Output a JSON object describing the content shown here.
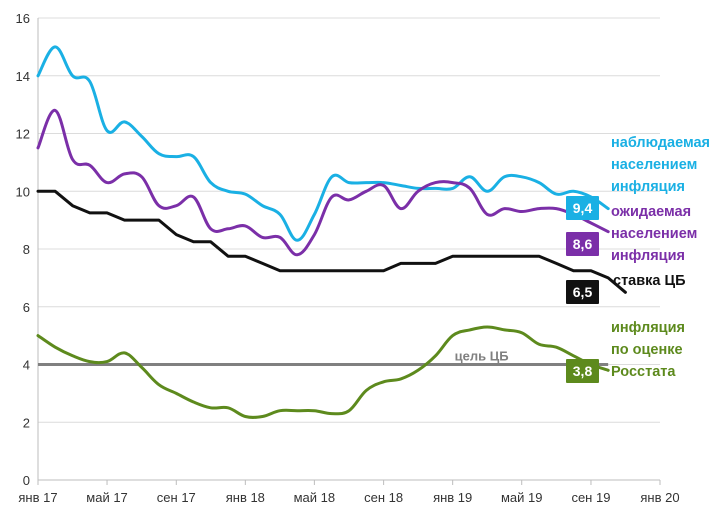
{
  "chart_data": {
    "type": "line",
    "title": "",
    "xlabel": "",
    "ylabel": "",
    "ylim": [
      0,
      16
    ],
    "yticks": [
      0,
      2,
      4,
      6,
      8,
      10,
      12,
      14,
      16
    ],
    "grid": true,
    "xlim": [
      2017.0,
      2020.0
    ],
    "xtick_labels": [
      {
        "x": 2017.0,
        "label": "янв 17"
      },
      {
        "x": 2017.333,
        "label": "май 17"
      },
      {
        "x": 2017.667,
        "label": "сен 17"
      },
      {
        "x": 2018.0,
        "label": "янв 18"
      },
      {
        "x": 2018.333,
        "label": "май 18"
      },
      {
        "x": 2018.667,
        "label": "сен 18"
      },
      {
        "x": 2019.0,
        "label": "янв 19"
      },
      {
        "x": 2019.333,
        "label": "май 19"
      },
      {
        "x": 2019.667,
        "label": "сен 19"
      },
      {
        "x": 2020.0,
        "label": "янв 20"
      }
    ],
    "series": [
      {
        "name": "наблюдаемая населением инфляция",
        "label_lines": [
          "наблюдаемая",
          "населением",
          "инфляция"
        ],
        "end_label": "9,4",
        "color": "#1ab0e4",
        "points": [
          [
            2017.0,
            14.0
          ],
          [
            2017.083,
            15.0
          ],
          [
            2017.167,
            14.0
          ],
          [
            2017.25,
            13.8
          ],
          [
            2017.333,
            12.1
          ],
          [
            2017.417,
            12.4
          ],
          [
            2017.5,
            11.9
          ],
          [
            2017.583,
            11.3
          ],
          [
            2017.667,
            11.2
          ],
          [
            2017.75,
            11.2
          ],
          [
            2017.833,
            10.3
          ],
          [
            2017.917,
            10.0
          ],
          [
            2018.0,
            9.9
          ],
          [
            2018.083,
            9.5
          ],
          [
            2018.167,
            9.2
          ],
          [
            2018.25,
            8.3
          ],
          [
            2018.333,
            9.2
          ],
          [
            2018.417,
            10.5
          ],
          [
            2018.5,
            10.3
          ],
          [
            2018.583,
            10.3
          ],
          [
            2018.667,
            10.3
          ],
          [
            2018.75,
            10.2
          ],
          [
            2018.833,
            10.1
          ],
          [
            2018.917,
            10.1
          ],
          [
            2019.0,
            10.1
          ],
          [
            2019.083,
            10.5
          ],
          [
            2019.167,
            10.0
          ],
          [
            2019.25,
            10.5
          ],
          [
            2019.333,
            10.5
          ],
          [
            2019.417,
            10.3
          ],
          [
            2019.5,
            9.9
          ],
          [
            2019.583,
            10.0
          ],
          [
            2019.667,
            9.8
          ],
          [
            2019.75,
            9.4
          ]
        ]
      },
      {
        "name": "ожидаемая населением инфляция",
        "label_lines": [
          "ожидаемая",
          "населением",
          "инфляция"
        ],
        "end_label": "8,6",
        "color": "#7b2fa8",
        "points": [
          [
            2017.0,
            11.5
          ],
          [
            2017.083,
            12.8
          ],
          [
            2017.167,
            11.1
          ],
          [
            2017.25,
            10.9
          ],
          [
            2017.333,
            10.3
          ],
          [
            2017.417,
            10.6
          ],
          [
            2017.5,
            10.5
          ],
          [
            2017.583,
            9.5
          ],
          [
            2017.667,
            9.5
          ],
          [
            2017.75,
            9.8
          ],
          [
            2017.833,
            8.7
          ],
          [
            2017.917,
            8.7
          ],
          [
            2018.0,
            8.8
          ],
          [
            2018.083,
            8.4
          ],
          [
            2018.167,
            8.4
          ],
          [
            2018.25,
            7.8
          ],
          [
            2018.333,
            8.5
          ],
          [
            2018.417,
            9.8
          ],
          [
            2018.5,
            9.7
          ],
          [
            2018.583,
            10.0
          ],
          [
            2018.667,
            10.2
          ],
          [
            2018.75,
            9.4
          ],
          [
            2018.833,
            10.0
          ],
          [
            2018.917,
            10.3
          ],
          [
            2019.0,
            10.3
          ],
          [
            2019.083,
            10.1
          ],
          [
            2019.167,
            9.2
          ],
          [
            2019.25,
            9.4
          ],
          [
            2019.333,
            9.3
          ],
          [
            2019.417,
            9.4
          ],
          [
            2019.5,
            9.4
          ],
          [
            2019.583,
            9.2
          ],
          [
            2019.667,
            8.9
          ],
          [
            2019.75,
            8.6
          ]
        ]
      },
      {
        "name": "ставка ЦБ",
        "label_lines": [
          "ставка ЦБ"
        ],
        "end_label": "6,5",
        "color": "#111111",
        "points": [
          [
            2017.0,
            10.0
          ],
          [
            2017.083,
            10.0
          ],
          [
            2017.167,
            9.5
          ],
          [
            2017.25,
            9.25
          ],
          [
            2017.333,
            9.25
          ],
          [
            2017.417,
            9.0
          ],
          [
            2017.5,
            9.0
          ],
          [
            2017.583,
            9.0
          ],
          [
            2017.667,
            8.5
          ],
          [
            2017.75,
            8.25
          ],
          [
            2017.833,
            8.25
          ],
          [
            2017.917,
            7.75
          ],
          [
            2018.0,
            7.75
          ],
          [
            2018.083,
            7.5
          ],
          [
            2018.167,
            7.25
          ],
          [
            2018.25,
            7.25
          ],
          [
            2018.333,
            7.25
          ],
          [
            2018.417,
            7.25
          ],
          [
            2018.5,
            7.25
          ],
          [
            2018.583,
            7.25
          ],
          [
            2018.667,
            7.25
          ],
          [
            2018.75,
            7.5
          ],
          [
            2018.833,
            7.5
          ],
          [
            2018.917,
            7.5
          ],
          [
            2019.0,
            7.75
          ],
          [
            2019.083,
            7.75
          ],
          [
            2019.167,
            7.75
          ],
          [
            2019.25,
            7.75
          ],
          [
            2019.333,
            7.75
          ],
          [
            2019.417,
            7.75
          ],
          [
            2019.5,
            7.5
          ],
          [
            2019.583,
            7.25
          ],
          [
            2019.667,
            7.25
          ],
          [
            2019.75,
            7.0
          ],
          [
            2019.833,
            6.5
          ]
        ]
      },
      {
        "name": "инфляция по оценке Росстата",
        "label_lines": [
          "инфляция",
          "по оценке",
          "Росстата"
        ],
        "end_label": "3,8",
        "color": "#5d8a1d",
        "points": [
          [
            2017.0,
            5.0
          ],
          [
            2017.083,
            4.6
          ],
          [
            2017.167,
            4.3
          ],
          [
            2017.25,
            4.1
          ],
          [
            2017.333,
            4.1
          ],
          [
            2017.417,
            4.4
          ],
          [
            2017.5,
            3.9
          ],
          [
            2017.583,
            3.3
          ],
          [
            2017.667,
            3.0
          ],
          [
            2017.75,
            2.7
          ],
          [
            2017.833,
            2.5
          ],
          [
            2017.917,
            2.5
          ],
          [
            2018.0,
            2.2
          ],
          [
            2018.083,
            2.2
          ],
          [
            2018.167,
            2.4
          ],
          [
            2018.25,
            2.4
          ],
          [
            2018.333,
            2.4
          ],
          [
            2018.417,
            2.3
          ],
          [
            2018.5,
            2.4
          ],
          [
            2018.583,
            3.1
          ],
          [
            2018.667,
            3.4
          ],
          [
            2018.75,
            3.5
          ],
          [
            2018.833,
            3.8
          ],
          [
            2018.917,
            4.3
          ],
          [
            2019.0,
            5.0
          ],
          [
            2019.083,
            5.2
          ],
          [
            2019.167,
            5.3
          ],
          [
            2019.25,
            5.2
          ],
          [
            2019.333,
            5.1
          ],
          [
            2019.417,
            4.7
          ],
          [
            2019.5,
            4.6
          ],
          [
            2019.583,
            4.3
          ],
          [
            2019.667,
            4.0
          ],
          [
            2019.75,
            3.8
          ]
        ]
      }
    ],
    "reference_line": {
      "name": "цель ЦБ",
      "label": "цель ЦБ",
      "y": 4.0,
      "color": "#808080"
    }
  }
}
